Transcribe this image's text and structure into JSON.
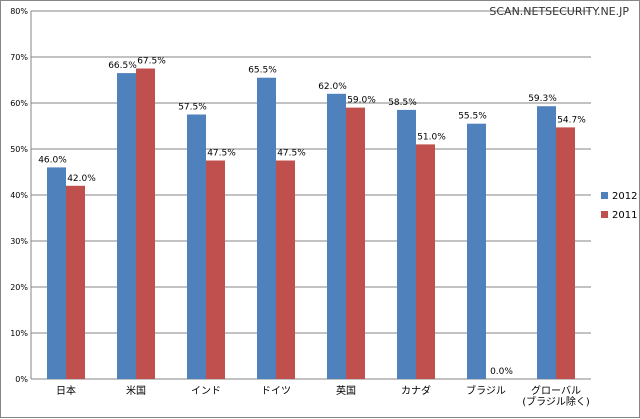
{
  "watermark": "SCAN.NETSECURITY.NE.JP",
  "chart_data": {
    "type": "bar",
    "categories": [
      "日本",
      "米国",
      "インド",
      "ドイツ",
      "英国",
      "カナダ",
      "ブラジル",
      "グローバル\n(ブラジル除く)"
    ],
    "series": [
      {
        "name": "2012",
        "color": "#4f81bd",
        "values": [
          46.0,
          66.5,
          57.5,
          65.5,
          62.0,
          58.5,
          55.5,
          59.3
        ],
        "labels": [
          "46.0%",
          "66.5%",
          "57.5%",
          "65.5%",
          "62.0%",
          "58.5%",
          "55.5%",
          "59.3%"
        ]
      },
      {
        "name": "2011",
        "color": "#c0504d",
        "values": [
          42.0,
          67.5,
          47.5,
          47.5,
          59.0,
          51.0,
          0.0,
          54.7
        ],
        "labels": [
          "42.0%",
          "67.5%",
          "47.5%",
          "47.5%",
          "59.0%",
          "51.0%",
          "0.0%",
          "54.7%"
        ]
      }
    ],
    "yticks": [
      "0%",
      "10%",
      "20%",
      "30%",
      "40%",
      "50%",
      "60%",
      "70%",
      "80%"
    ],
    "ylim": [
      0,
      80
    ],
    "grid": true,
    "legend_position": "right"
  }
}
